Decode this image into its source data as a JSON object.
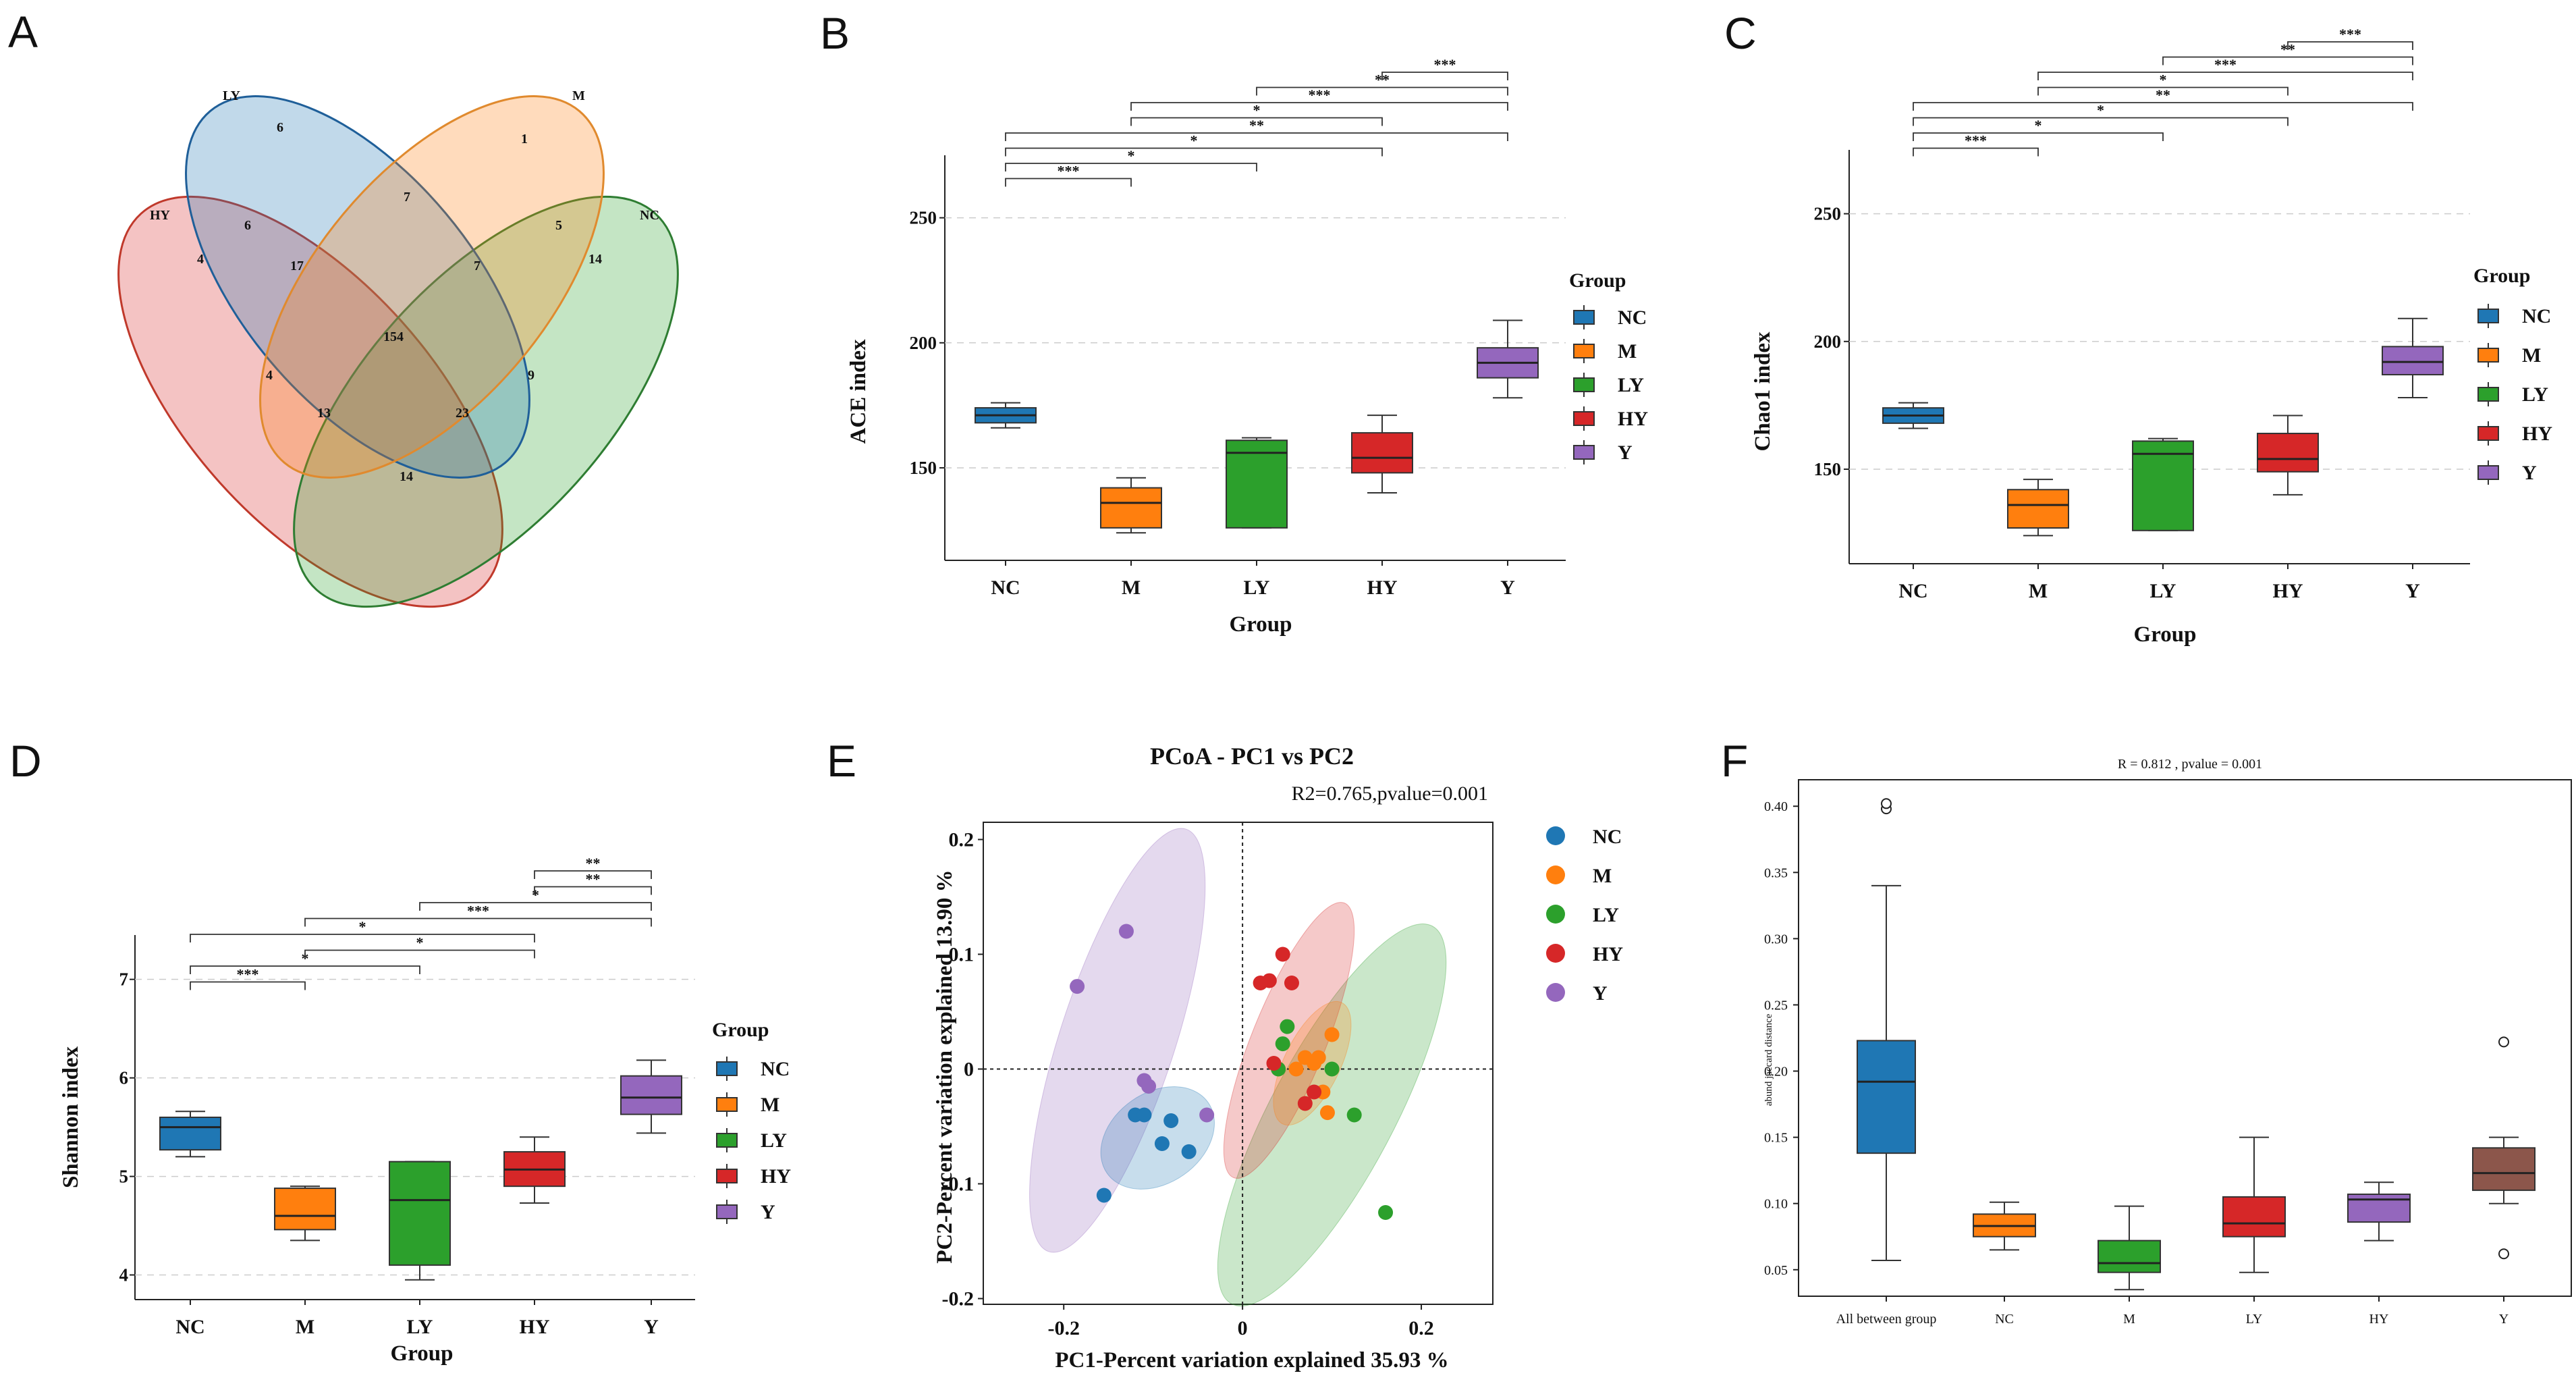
{
  "colors": {
    "NC": "#1f77b4",
    "M": "#ff7f0e",
    "LY": "#2ca02c",
    "HY": "#d62728",
    "Y": "#9467bd",
    "AB": "#8c564b"
  },
  "panels": {
    "A": "A",
    "B": "B",
    "C": "C",
    "D": "D",
    "E": "E",
    "F": "F"
  },
  "chart_data": [
    {
      "panel": "A",
      "type": "venn",
      "sets": [
        "LY",
        "M",
        "HY",
        "NC"
      ],
      "region_values": [
        "6",
        "1",
        "4",
        "14",
        "7",
        "6",
        "5",
        "17",
        "7",
        "154",
        "4",
        "9",
        "13",
        "23",
        "14"
      ]
    },
    {
      "panel": "B",
      "type": "box",
      "xlabel": "Group",
      "ylabel": "ACE index",
      "categories": [
        "NC",
        "M",
        "LY",
        "HY",
        "Y"
      ],
      "yticks": [
        150,
        200,
        250
      ],
      "ylim": [
        113,
        275
      ],
      "boxes": [
        {
          "group": "NC",
          "min": 166,
          "q1": 168,
          "median": 171,
          "q3": 174,
          "max": 176
        },
        {
          "group": "M",
          "min": 124,
          "q1": 126,
          "median": 136,
          "q3": 142,
          "max": 146
        },
        {
          "group": "LY",
          "min": 126,
          "q1": 126,
          "median": 156,
          "q3": 161,
          "max": 162
        },
        {
          "group": "HY",
          "min": 140,
          "q1": 148,
          "median": 154,
          "q3": 164,
          "max": 171
        },
        {
          "group": "Y",
          "min": 178,
          "q1": 186,
          "median": 192,
          "q3": 198,
          "max": 209
        }
      ],
      "legend_title": "Group",
      "comparisons": [
        {
          "a": "NC",
          "b": "M",
          "label": "***"
        },
        {
          "a": "NC",
          "b": "LY",
          "label": "*"
        },
        {
          "a": "NC",
          "b": "HY",
          "label": "*"
        },
        {
          "a": "NC",
          "b": "Y",
          "label": "**"
        },
        {
          "a": "M",
          "b": "HY",
          "label": "*"
        },
        {
          "a": "M",
          "b": "Y",
          "label": "***"
        },
        {
          "a": "LY",
          "b": "Y",
          "label": "**"
        },
        {
          "a": "HY",
          "b": "Y",
          "label": "***"
        }
      ]
    },
    {
      "panel": "C",
      "type": "box",
      "xlabel": "Group",
      "ylabel": "Chao1 index",
      "categories": [
        "NC",
        "M",
        "LY",
        "HY",
        "Y"
      ],
      "yticks": [
        150,
        200,
        250
      ],
      "ylim": [
        113,
        275
      ],
      "boxes": [
        {
          "group": "NC",
          "min": 166,
          "q1": 168,
          "median": 171,
          "q3": 174,
          "max": 176
        },
        {
          "group": "M",
          "min": 124,
          "q1": 127,
          "median": 136,
          "q3": 142,
          "max": 146
        },
        {
          "group": "LY",
          "min": 126,
          "q1": 126,
          "median": 156,
          "q3": 161,
          "max": 162
        },
        {
          "group": "HY",
          "min": 140,
          "q1": 149,
          "median": 154,
          "q3": 164,
          "max": 171
        },
        {
          "group": "Y",
          "min": 178,
          "q1": 187,
          "median": 192,
          "q3": 198,
          "max": 209
        }
      ],
      "legend_title": "Group",
      "comparisons": [
        {
          "a": "NC",
          "b": "M",
          "label": "***"
        },
        {
          "a": "NC",
          "b": "LY",
          "label": "*"
        },
        {
          "a": "NC",
          "b": "HY",
          "label": "*"
        },
        {
          "a": "NC",
          "b": "Y",
          "label": "**"
        },
        {
          "a": "M",
          "b": "HY",
          "label": "*"
        },
        {
          "a": "M",
          "b": "Y",
          "label": "***"
        },
        {
          "a": "LY",
          "b": "Y",
          "label": "**"
        },
        {
          "a": "HY",
          "b": "Y",
          "label": "***"
        }
      ]
    },
    {
      "panel": "D",
      "type": "box",
      "xlabel": "Group",
      "ylabel": "Shannon index",
      "categories": [
        "NC",
        "M",
        "LY",
        "HY",
        "Y"
      ],
      "yticks": [
        4,
        5,
        6,
        7
      ],
      "ylim": [
        3.75,
        7.45
      ],
      "boxes": [
        {
          "group": "NC",
          "min": 5.2,
          "q1": 5.27,
          "median": 5.5,
          "q3": 5.6,
          "max": 5.66
        },
        {
          "group": "M",
          "min": 4.35,
          "q1": 4.46,
          "median": 4.6,
          "q3": 4.88,
          "max": 4.9
        },
        {
          "group": "LY",
          "min": 3.95,
          "q1": 4.1,
          "median": 4.76,
          "q3": 5.15,
          "max": 5.15
        },
        {
          "group": "HY",
          "min": 4.73,
          "q1": 4.9,
          "median": 5.07,
          "q3": 5.25,
          "max": 5.4
        },
        {
          "group": "Y",
          "min": 5.44,
          "q1": 5.63,
          "median": 5.8,
          "q3": 6.02,
          "max": 6.18
        }
      ],
      "legend_title": "Group",
      "comparisons": [
        {
          "a": "NC",
          "b": "M",
          "label": "***"
        },
        {
          "a": "NC",
          "b": "LY",
          "label": "*"
        },
        {
          "a": "M",
          "b": "HY",
          "label": "*"
        },
        {
          "a": "NC",
          "b": "HY",
          "label": "*"
        },
        {
          "a": "M",
          "b": "Y",
          "label": "***"
        },
        {
          "a": "LY",
          "b": "Y",
          "label": "*"
        },
        {
          "a": "HY",
          "b": "Y",
          "label": "**"
        },
        {
          "a": "HY",
          "b": "Y",
          "label": "**"
        }
      ]
    },
    {
      "panel": "E",
      "type": "scatter",
      "title": "PCoA - PC1 vs PC2",
      "subtitle": "R2=0.765,pvalue=0.001",
      "xlabel": "PC1-Percent variation explained 35.93 %",
      "ylabel": "PC2-Percent variation explained 13.90 %",
      "xlim": [
        -0.29,
        0.28
      ],
      "ylim": [
        -0.205,
        0.215
      ],
      "xticks": [
        -0.2,
        0,
        0.2
      ],
      "yticks": [
        -0.2,
        -0.1,
        0,
        0.1,
        0.2
      ],
      "series": [
        {
          "name": "NC",
          "x": [
            -0.12,
            -0.08,
            -0.06,
            -0.09,
            -0.11,
            -0.155
          ],
          "y": [
            -0.04,
            -0.045,
            -0.072,
            -0.065,
            -0.04,
            -0.11
          ]
        },
        {
          "name": "M",
          "x": [
            0.07,
            0.085,
            0.1,
            0.095,
            0.06,
            0.09,
            0.08
          ],
          "y": [
            0.01,
            0.01,
            0.03,
            -0.038,
            0.0,
            -0.02,
            0.005
          ]
        },
        {
          "name": "LY",
          "x": [
            0.1,
            0.045,
            0.05,
            0.125,
            0.16,
            0.04
          ],
          "y": [
            0.0,
            0.022,
            0.037,
            -0.04,
            -0.125,
            0.0
          ]
        },
        {
          "name": "HY",
          "x": [
            0.03,
            0.055,
            0.045,
            0.02,
            0.035,
            0.07,
            0.08
          ],
          "y": [
            0.077,
            0.075,
            0.1,
            0.075,
            0.005,
            -0.03,
            -0.02
          ]
        },
        {
          "name": "Y",
          "x": [
            -0.185,
            -0.13,
            -0.11,
            -0.105,
            -0.04
          ],
          "y": [
            0.072,
            0.12,
            -0.01,
            -0.015,
            -0.04
          ]
        }
      ]
    },
    {
      "panel": "F",
      "type": "box",
      "title": "R = 0.812 , pvalue = 0.001",
      "ylabel": "abund jaccard distance",
      "categories": [
        "All between group",
        "NC",
        "M",
        "LY",
        "HY",
        "Y"
      ],
      "yticks": [
        "0.05",
        "0.10",
        "0.15",
        "0.20",
        "0.25",
        "0.30",
        "0.35",
        "0.40"
      ],
      "ylim": [
        0.03,
        0.42
      ],
      "boxes": [
        {
          "group": "All between group",
          "min": 0.057,
          "q1": 0.138,
          "median": 0.192,
          "q3": 0.223,
          "max": 0.34,
          "outliers": [
            0.398,
            0.402
          ]
        },
        {
          "group": "NC",
          "min": 0.065,
          "q1": 0.075,
          "median": 0.083,
          "q3": 0.092,
          "max": 0.101,
          "outliers": []
        },
        {
          "group": "M",
          "min": 0.035,
          "q1": 0.048,
          "median": 0.055,
          "q3": 0.072,
          "max": 0.098,
          "outliers": []
        },
        {
          "group": "LY",
          "min": 0.048,
          "q1": 0.075,
          "median": 0.085,
          "q3": 0.105,
          "max": 0.15,
          "outliers": []
        },
        {
          "group": "HY",
          "min": 0.072,
          "q1": 0.086,
          "median": 0.103,
          "q3": 0.107,
          "max": 0.116,
          "outliers": []
        },
        {
          "group": "Y",
          "min": 0.1,
          "q1": 0.11,
          "median": 0.123,
          "q3": 0.142,
          "max": 0.15,
          "outliers": [
            0.062,
            0.222
          ]
        }
      ]
    }
  ]
}
